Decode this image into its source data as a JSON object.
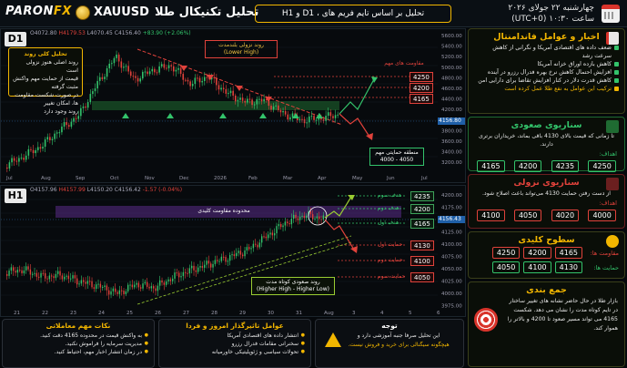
{
  "header": {
    "logo_main": "PARON",
    "logo_fx": "FX",
    "symbol": "XAUUSD",
    "title": "تحلیل تکنیکال طلا",
    "subtitle": "تحلیل بر اساس تایم فریم های ، D1 و H1",
    "date_line": "چهارشنبه ۲۲ جولای ۲۰۲۶",
    "time_line": "ساعت ۱۰:۳۰ (UTC+0)"
  },
  "d1_chart": {
    "label": "D1",
    "ohlc": {
      "o": "O4072.80",
      "h": "H4179.53",
      "l": "L4070.45",
      "c": "C4156.40",
      "chg": "+83.90 (+2.06%)"
    },
    "trend_box_title": "تحلیل کلی روند",
    "trend_box_lines": [
      "روند اصلی هنوز نزولی است",
      "قیمت از حمایت مهم واکنش مثبت گرفته",
      "در صورت شکست مقاومت ها، امکان تغییر",
      "روند وجود دارد"
    ],
    "downtrend_label_1": "روند نزولی بلندمدت",
    "downtrend_label_2": "(Lower High)",
    "resistance_title": "مقاومت های مهم",
    "resistance_levels": [
      "4250",
      "4200",
      "4165"
    ],
    "price_tag": "4156.80",
    "support_label_1": "منطقه حمایتی مهم",
    "support_label_2": "4000 - 4050",
    "x_labels": [
      "Jul",
      "Aug",
      "Sep",
      "Oct",
      "Nov",
      "Dec",
      "2026",
      "Feb",
      "Mar",
      "Apr",
      "May",
      "Jun",
      "Jul"
    ],
    "y_labels": [
      "5600.00",
      "5400.00",
      "5200.00",
      "5000.00",
      "4800.00",
      "4600.00",
      "4400.00",
      "4200.00",
      "4000.00",
      "3800.00",
      "3600.00",
      "3400.00",
      "3200.00"
    ]
  },
  "h1_chart": {
    "label": "H1",
    "ohlc": {
      "o": "O4157.96",
      "h": "H4157.99",
      "l": "L4150.20",
      "c": "C4156.42",
      "chg": "-1.57 (-0.04%)"
    },
    "resistance_zone_label": "محدوده مقاومت کلیدی",
    "targets": [
      {
        "label": "هدف سوم",
        "value": "4235"
      },
      {
        "label": "هدف دوم",
        "value": "4200"
      },
      {
        "label": "هدف اول",
        "value": "4165"
      }
    ],
    "supports": [
      {
        "label": "حمایت اول",
        "value": "4130"
      },
      {
        "label": "حمایت دوم",
        "value": "4100"
      },
      {
        "label": "حمایت سوم",
        "value": "4050"
      }
    ],
    "price_tag": "4156.43",
    "uptrend_label_1": "روند صعودی کوتاه مدت",
    "uptrend_label_2": "(Higher High - Higher Low)",
    "x_labels": [
      "21",
      "22",
      "23",
      "24",
      "25",
      "26",
      "27",
      "28",
      "29",
      "30",
      "31",
      "Aug",
      "3",
      "4",
      "5",
      "6"
    ],
    "y_labels": [
      "4200.00",
      "4175.00",
      "4150.00",
      "4125.00",
      "4100.00",
      "4075.00",
      "4050.00",
      "4025.00",
      "4000.00",
      "3975.00"
    ]
  },
  "news_card": {
    "title": "اخبار و عوامل فاندامنتال",
    "items": [
      "ضعف داده های اقتصادی آمریکا و نگرانی از کاهش سرعت رشد",
      "کاهش بازده اوراق خزانه آمریکا",
      "افزایش احتمال کاهش نرخ بهره فدرال رزرو در آینده",
      "کاهش قدرت دلار در کنار افزایش تقاضا برای دارایی امن"
    ],
    "warning": "ترکیب این عوامل به نفع طلا عمل کرده است"
  },
  "bull_card": {
    "title": "سناریوی صعودی",
    "text": "تا زمانی که قیمت بالای 4130 باقی بماند، خریداران برتری دارند.",
    "targets_label": "اهداف:",
    "targets": [
      "4165",
      "4200",
      "4235",
      "4250"
    ]
  },
  "bear_card": {
    "title": "سناریوی نزولی",
    "text": "از دست رفتن حمایت 4130 می‌تواند باعث اصلاح شود.",
    "targets_label": "اهداف:",
    "targets": [
      "4100",
      "4050",
      "4020",
      "4000"
    ]
  },
  "key_levels_card": {
    "title": "سطوح کلیدی",
    "resistance_label": "مقاومت ها:",
    "resistance": [
      "4165",
      "4200",
      "4250"
    ],
    "support_label": "حمایت ها:",
    "support": [
      "4130",
      "4100",
      "4050"
    ]
  },
  "summary_card": {
    "title": "جمع بندی",
    "text": "بازار طلا در حال حاضر نشانه های تغییر ساختار در تایم کوتاه مدت را نشان می دهد. شکست 4165 می تواند مسیر صعود تا 4200 و بالاتر را هموار کند."
  },
  "bottom": {
    "notes": {
      "title": "نکات مهم معاملاتی",
      "items": [
        "به واکنش قیمت در محدوده 4165 دقت کنید.",
        "مدیریت سرمایه را فراموش نکنید.",
        "در زمان انتشار اخبار مهم، احتیاط کنید."
      ]
    },
    "factors": {
      "title": "عوامل تاثیرگذار امروز و فردا",
      "items": [
        "انتشار داده های اقتصادی آمریکا",
        "سخنرانی مقامات فدرال رزرو",
        "تحولات سیاسی و ژئوپلیتیکی خاورمیانه"
      ]
    },
    "caution": {
      "title": "توجه",
      "line1": "این تحلیل صرفا جنبه آموزشی دارد و",
      "line2": "هیچگونه سیگنالی برای خرید و فروش نیست."
    }
  },
  "colors": {
    "accent": "#f2b600",
    "up": "#33c36b",
    "down": "#e0423b"
  }
}
